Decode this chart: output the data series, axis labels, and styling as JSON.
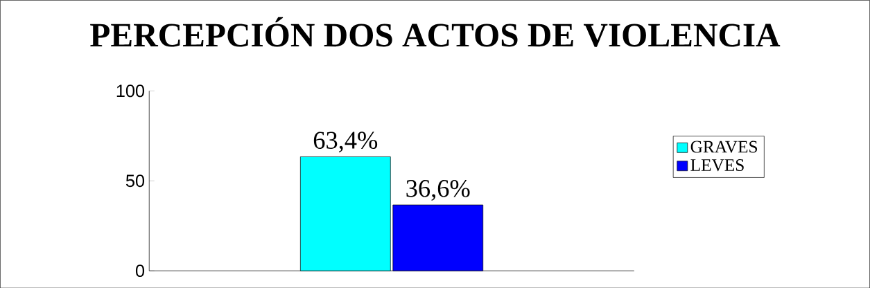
{
  "chart_data": {
    "type": "bar",
    "title": "PERCEPCIÓN DOS ACTOS DE VIOLENCIA",
    "categories": [
      null
    ],
    "series": [
      {
        "name": "GRAVES",
        "color": "#00ffff",
        "values": [
          63.4
        ],
        "value_labels": [
          "63,4%"
        ]
      },
      {
        "name": "LEVES",
        "color": "#0000ff",
        "values": [
          36.6
        ],
        "value_labels": [
          "36,6%"
        ]
      }
    ],
    "ylim": [
      0,
      100
    ],
    "yticks": [
      0,
      50,
      100
    ],
    "grid": false,
    "legend": "right"
  }
}
